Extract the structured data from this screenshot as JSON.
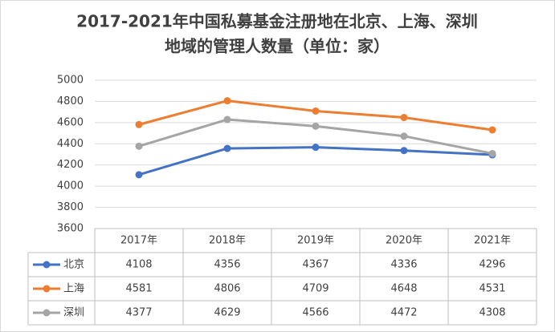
{
  "chart_data": {
    "type": "line",
    "title": [
      "2017-2021年中国私募基金注册地在北京、上海、深圳",
      "地域的管理人数量（单位：家）"
    ],
    "categories": [
      "2017年",
      "2018年",
      "2019年",
      "2020年",
      "2021年"
    ],
    "series": [
      {
        "name": "北京",
        "color": "#4472c4",
        "values": [
          4108,
          4356,
          4367,
          4336,
          4296
        ]
      },
      {
        "name": "上海",
        "color": "#ed7d31",
        "values": [
          4581,
          4806,
          4709,
          4648,
          4531
        ]
      },
      {
        "name": "深圳",
        "color": "#a5a5a5",
        "values": [
          4377,
          4629,
          4566,
          4472,
          4308
        ]
      }
    ],
    "ylim": [
      3600,
      5000
    ],
    "yticks": [
      3600,
      3800,
      4000,
      4200,
      4400,
      4600,
      4800,
      5000
    ],
    "grid": true
  }
}
